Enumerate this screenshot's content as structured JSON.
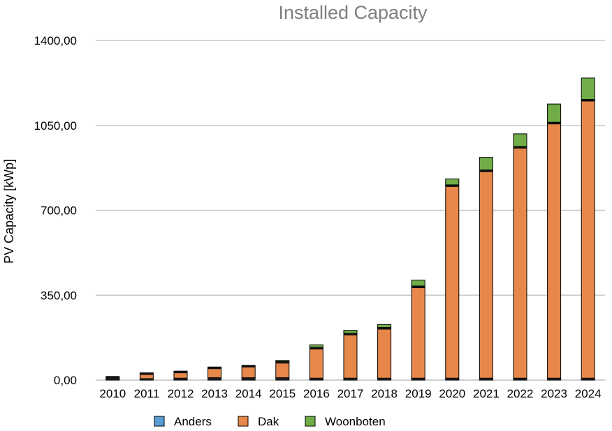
{
  "chart_data": {
    "type": "bar",
    "stacked": true,
    "title": "Installed Capacity",
    "xlabel": "",
    "ylabel": "PV Capacity [kWp]",
    "ylim": [
      0,
      1400
    ],
    "yticks": [
      0,
      350,
      700,
      1050,
      1400
    ],
    "ytick_labels": [
      "0,00",
      "350,00",
      "700,00",
      "1050,00",
      "1400,00"
    ],
    "grid": true,
    "legend_position": "bottom",
    "categories": [
      "2010",
      "2011",
      "2012",
      "2013",
      "2014",
      "2015",
      "2016",
      "2017",
      "2018",
      "2019",
      "2020",
      "2021",
      "2022",
      "2023",
      "2024"
    ],
    "series": [
      {
        "name": "Anders",
        "color": "#5b9bd5",
        "values": [
          5,
          6,
          8,
          10,
          10,
          10,
          8,
          8,
          8,
          8,
          8,
          8,
          8,
          8,
          8
        ]
      },
      {
        "name": "Dak",
        "color": "#e8874a",
        "values": [
          10,
          24,
          29,
          44,
          51,
          67,
          127,
          185,
          209,
          380,
          797,
          858,
          955,
          1055,
          1149
        ]
      },
      {
        "name": "Woonboten",
        "color": "#70ad47",
        "values": [
          0,
          0,
          0,
          0,
          0,
          4,
          10,
          12,
          12,
          24,
          24,
          52,
          52,
          75,
          88
        ]
      }
    ]
  }
}
